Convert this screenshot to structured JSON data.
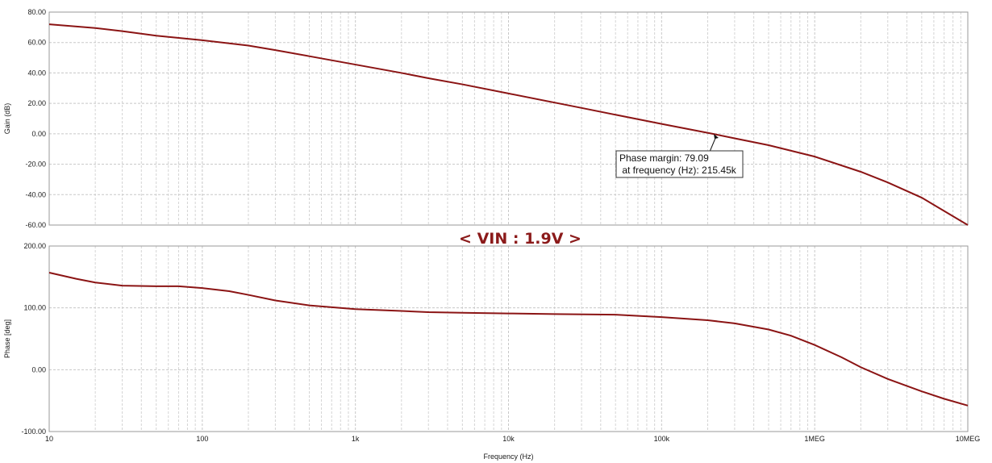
{
  "banner": "< VIN : 1.9V >",
  "annotation": {
    "line1": "Phase margin: 79.09",
    "line2": " at frequency (Hz): 215.45k"
  },
  "colors": {
    "curve": "#8b1414",
    "banner": "#8b1a1a",
    "grid": "#c8c8c8"
  },
  "chart_data": [
    {
      "type": "line",
      "xlabel": "Frequency (Hz)",
      "ylabel": "Gain (dB)",
      "x_scale": "log",
      "xlim": [
        10,
        10000000
      ],
      "ylim": [
        -60,
        80
      ],
      "grid": true,
      "x_ticks": [
        {
          "v": 10,
          "label": "10"
        },
        {
          "v": 100,
          "label": "100"
        },
        {
          "v": 1000,
          "label": "1k"
        },
        {
          "v": 10000,
          "label": "10k"
        },
        {
          "v": 100000,
          "label": "100k"
        },
        {
          "v": 1000000,
          "label": "1MEG"
        },
        {
          "v": 10000000,
          "label": "10MEG"
        }
      ],
      "y_ticks": [
        {
          "v": 80,
          "label": "80.00"
        },
        {
          "v": 60,
          "label": "60.00"
        },
        {
          "v": 40,
          "label": "40.00"
        },
        {
          "v": 20,
          "label": "20.00"
        },
        {
          "v": 0,
          "label": "0.00"
        },
        {
          "v": -20,
          "label": "-20.00"
        },
        {
          "v": -40,
          "label": "-40.00"
        },
        {
          "v": -60,
          "label": "-60.00"
        }
      ],
      "x": [
        10,
        20,
        30,
        50,
        100,
        200,
        300,
        500,
        1000,
        2000,
        3000,
        5000,
        10000,
        20000,
        30000,
        50000,
        100000,
        215450,
        300000,
        500000,
        1000000,
        2000000,
        3000000,
        5000000,
        10000000
      ],
      "y": [
        72,
        69.5,
        67.5,
        64.5,
        61.5,
        58,
        55,
        51,
        45.5,
        40,
        36.5,
        32.5,
        26.5,
        20.5,
        17,
        12.5,
        6.5,
        0,
        -3,
        -7.5,
        -15,
        -25,
        -32,
        -42,
        -60
      ]
    },
    {
      "type": "line",
      "xlabel": "Frequency (Hz)",
      "ylabel": "Phase [deg]",
      "x_scale": "log",
      "xlim": [
        10,
        10000000
      ],
      "ylim": [
        -100,
        200
      ],
      "grid": true,
      "x_ticks": [
        {
          "v": 10,
          "label": "10"
        },
        {
          "v": 100,
          "label": "100"
        },
        {
          "v": 1000,
          "label": "1k"
        },
        {
          "v": 10000,
          "label": "10k"
        },
        {
          "v": 100000,
          "label": "100k"
        },
        {
          "v": 1000000,
          "label": "1MEG"
        },
        {
          "v": 10000000,
          "label": "10MEG"
        }
      ],
      "y_ticks": [
        {
          "v": 200,
          "label": "200.00"
        },
        {
          "v": 100,
          "label": "100.00"
        },
        {
          "v": 0,
          "label": "0.00"
        },
        {
          "v": -100,
          "label": "-100.00"
        }
      ],
      "x": [
        10,
        15,
        20,
        30,
        50,
        70,
        100,
        150,
        200,
        300,
        500,
        700,
        1000,
        2000,
        3000,
        5000,
        10000,
        20000,
        50000,
        100000,
        200000,
        300000,
        500000,
        700000,
        1000000,
        1500000,
        2000000,
        3000000,
        5000000,
        7000000,
        10000000
      ],
      "y": [
        157,
        147,
        141,
        136,
        135,
        135,
        132,
        127,
        121,
        112,
        104,
        101,
        98,
        95,
        93,
        92,
        91,
        90,
        89,
        85,
        80,
        75,
        65,
        55,
        40,
        20,
        4,
        -15,
        -35,
        -47,
        -58
      ]
    }
  ]
}
